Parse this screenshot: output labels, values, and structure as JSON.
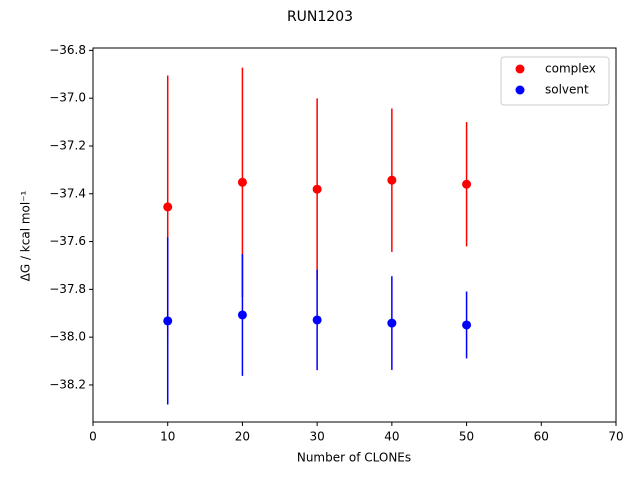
{
  "chart_data": {
    "type": "scatter",
    "title": "RUN1203",
    "x_label": "Number of CLONEs",
    "y_label": "ΔG / kcal mol⁻¹",
    "x": [
      10,
      20,
      30,
      40,
      50
    ],
    "series": [
      {
        "name": "complex",
        "color": "#ff0000",
        "values": [
          -37.455,
          -37.352,
          -37.381,
          -37.343,
          -37.36
        ],
        "errors": [
          0.55,
          0.48,
          0.38,
          0.3,
          0.26
        ]
      },
      {
        "name": "solvent",
        "color": "#0000ff",
        "values": [
          -37.932,
          -37.907,
          -37.928,
          -37.941,
          -37.949
        ],
        "errors": [
          0.35,
          0.255,
          0.21,
          0.196,
          0.14
        ]
      }
    ],
    "xlim": [
      0,
      70
    ],
    "xticks": [
      0,
      10,
      20,
      30,
      40,
      50,
      60,
      70
    ],
    "ylim": [
      -38.355,
      -36.79
    ],
    "yticks": [
      {
        "value": -38.2,
        "label": "−38.2"
      },
      {
        "value": -38.0,
        "label": "−38.0"
      },
      {
        "value": -37.8,
        "label": "−37.8"
      },
      {
        "value": -37.6,
        "label": "−37.6"
      },
      {
        "value": -37.4,
        "label": "−37.4"
      },
      {
        "value": -37.2,
        "label": "−37.2"
      },
      {
        "value": -37.0,
        "label": "−37.0"
      },
      {
        "value": -36.8,
        "label": "−36.8"
      }
    ],
    "legend": "upper right"
  }
}
